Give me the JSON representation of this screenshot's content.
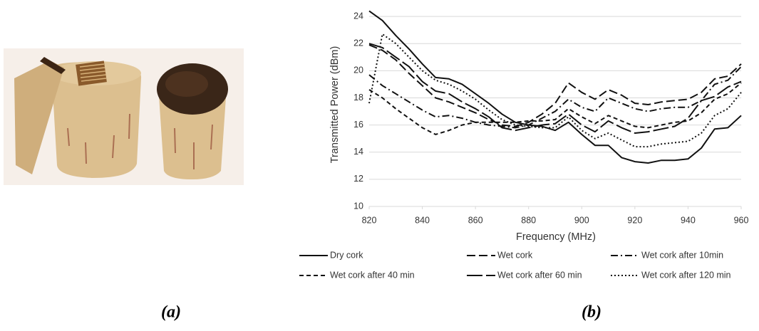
{
  "chart_data": {
    "type": "line",
    "x_label": "Frequency (MHz)",
    "y_label": "Transmitted Power (dBm)",
    "caption_a": "(a)",
    "caption_b": "(b)",
    "x": [
      820,
      825,
      830,
      835,
      840,
      845,
      850,
      855,
      860,
      865,
      870,
      875,
      880,
      885,
      890,
      895,
      900,
      905,
      910,
      915,
      920,
      925,
      930,
      935,
      940,
      945,
      950,
      955,
      960
    ],
    "xlim": [
      820,
      960
    ],
    "xticks": [
      820,
      840,
      860,
      880,
      900,
      920,
      940,
      960
    ],
    "ylim": [
      10,
      25
    ],
    "yticks": [
      10,
      12,
      14,
      16,
      18,
      20,
      22,
      24
    ],
    "grid": true,
    "series": [
      {
        "name": "Dry cork",
        "color": "#111111",
        "dash": "none",
        "values": [
          24.4,
          23.7,
          22.6,
          21.6,
          20.5,
          19.5,
          19.4,
          19.0,
          18.3,
          17.6,
          16.8,
          16.2,
          16.0,
          15.9,
          15.6,
          16.2,
          15.3,
          14.5,
          14.5,
          13.6,
          13.3,
          13.2,
          13.4,
          13.4,
          13.5,
          14.3,
          15.7,
          15.8,
          16.7
        ]
      },
      {
        "name": "Wet cork",
        "color": "#111111",
        "dash": "12 5",
        "values": [
          21.9,
          21.5,
          20.8,
          19.8,
          18.9,
          18.0,
          17.7,
          17.3,
          16.9,
          16.4,
          16.0,
          15.9,
          16.2,
          16.8,
          17.6,
          19.1,
          18.4,
          17.9,
          18.6,
          18.2,
          17.6,
          17.5,
          17.7,
          17.8,
          17.9,
          18.4,
          19.4,
          19.6,
          20.5
        ]
      },
      {
        "name": "Wet cork after 10min",
        "color": "#111111",
        "dash": "10 4 2 4",
        "values": [
          19.7,
          18.9,
          18.3,
          17.7,
          17.1,
          16.6,
          16.7,
          16.5,
          16.2,
          16.0,
          15.9,
          15.8,
          16.0,
          16.5,
          17.0,
          17.9,
          17.3,
          17.0,
          18.0,
          17.6,
          17.2,
          17.0,
          17.2,
          17.3,
          17.3,
          17.8,
          19.0,
          19.3,
          20.3
        ]
      },
      {
        "name": "Wet cork after 40 min",
        "color": "#111111",
        "dash": "6 4",
        "values": [
          18.6,
          18.0,
          17.2,
          16.5,
          15.8,
          15.3,
          15.6,
          16.0,
          16.2,
          16.2,
          16.2,
          16.2,
          16.3,
          16.3,
          16.4,
          17.2,
          16.6,
          16.1,
          16.7,
          16.3,
          15.9,
          15.8,
          16.0,
          16.2,
          16.3,
          16.9,
          17.9,
          18.3,
          19.1
        ]
      },
      {
        "name": "Wet cork after 60 min",
        "color": "#111111",
        "dash": "22 5",
        "values": [
          22.0,
          21.7,
          21.0,
          20.3,
          19.2,
          18.5,
          18.3,
          17.7,
          17.2,
          16.6,
          15.8,
          15.6,
          15.8,
          16.0,
          16.1,
          16.8,
          16.0,
          15.5,
          16.3,
          15.8,
          15.4,
          15.5,
          15.7,
          15.9,
          16.5,
          17.8,
          18.1,
          18.8,
          19.2
        ]
      },
      {
        "name": "Wet cork after 120 min",
        "color": "#111111",
        "dash": "2 3",
        "values": [
          17.6,
          22.7,
          22.0,
          21.0,
          20.0,
          19.3,
          19.0,
          18.5,
          17.9,
          17.1,
          16.4,
          16.0,
          15.9,
          15.8,
          15.8,
          16.6,
          15.6,
          15.0,
          15.4,
          14.9,
          14.4,
          14.4,
          14.6,
          14.7,
          14.8,
          15.4,
          16.7,
          17.2,
          18.4
        ]
      }
    ]
  }
}
